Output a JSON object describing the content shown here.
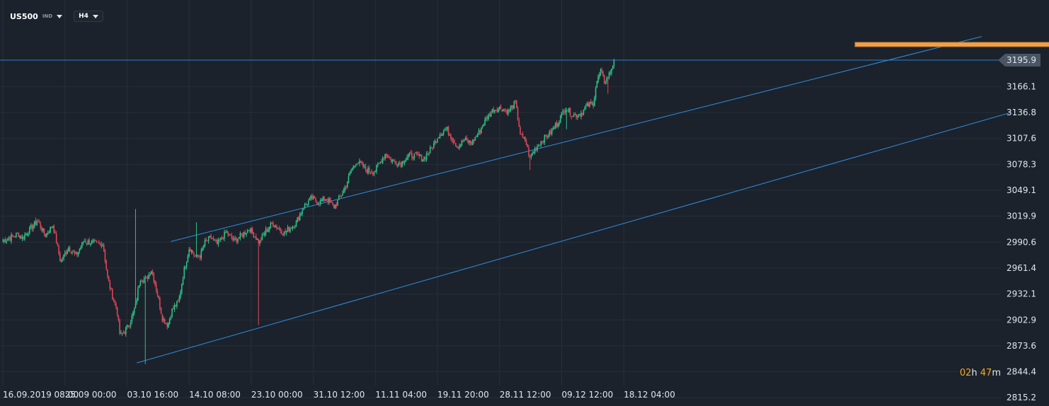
{
  "toolbar": {
    "symbol": "US500",
    "symbol_type": "IND",
    "timeframe": "H4",
    "symbol_dropdown_icon": "chevron-down-icon",
    "timeframe_dropdown_icon": "chevron-down-icon"
  },
  "timer": {
    "hours": "02",
    "h_unit": "h",
    "minutes": "47",
    "m_unit": "m"
  },
  "colors": {
    "background": "#1b222b",
    "grid": "#262f3a",
    "up_candle": "#2fbf85",
    "down_candle": "#e0455a",
    "channel_line": "#2f8fe6",
    "price_line": "#2f8fe6",
    "resistance_zone": "#f0a04b",
    "current_price_tag": "#4a5563",
    "axis_text": "#dfe6ee"
  },
  "chart_data": {
    "type": "candlestick",
    "symbol": "US500",
    "timeframe": "H4",
    "current_price": 3195.9,
    "y_axis_ticks": [
      "3195.9",
      "3166.1",
      "3136.8",
      "3107.6",
      "3078.3",
      "3049.1",
      "3019.9",
      "2990.6",
      "2961.4",
      "2932.1",
      "2902.9",
      "2873.6",
      "2844.4",
      "2815.2"
    ],
    "y_axis_tick_values": [
      3195.9,
      3166.1,
      3136.8,
      3107.6,
      3078.3,
      3049.1,
      3019.9,
      2990.6,
      2961.4,
      2932.1,
      2902.9,
      2873.6,
      2844.4,
      2815.2
    ],
    "ylim": [
      2809,
      3223
    ],
    "x_axis_labels": [
      "16.09.2019  08:00",
      "25.09  00:00",
      "03.10  16:00",
      "14.10  08:00",
      "23.10  00:00",
      "31.10  12:00",
      "11.11  04:00",
      "19.11  20:00",
      "28.11  12:00",
      "09.12  12:00",
      "18.12  04:00"
    ],
    "x_axis_label_index": [
      0,
      51,
      102,
      153,
      204,
      255,
      306,
      357,
      408,
      459,
      510
    ],
    "bar_count": 503,
    "close_path_anchors": [
      [
        0,
        2992
      ],
      [
        20,
        3000
      ],
      [
        25,
        2995
      ],
      [
        35,
        3005
      ],
      [
        45,
        3015
      ],
      [
        55,
        2998
      ],
      [
        65,
        3010
      ],
      [
        75,
        2968
      ],
      [
        85,
        2985
      ],
      [
        95,
        2975
      ],
      [
        105,
        2992
      ],
      [
        115,
        2990
      ],
      [
        130,
        2988
      ],
      [
        136,
        2950
      ],
      [
        142,
        2930
      ],
      [
        148,
        2915
      ],
      [
        152,
        2885
      ],
      [
        158,
        2890
      ],
      [
        165,
        2900
      ],
      [
        172,
        2918
      ],
      [
        178,
        2950
      ],
      [
        186,
        2948
      ],
      [
        193,
        2960
      ],
      [
        200,
        2935
      ],
      [
        207,
        2905
      ],
      [
        214,
        2897
      ],
      [
        220,
        2915
      ],
      [
        228,
        2923
      ],
      [
        235,
        2958
      ],
      [
        242,
        2985
      ],
      [
        250,
        2974
      ],
      [
        256,
        2975
      ],
      [
        262,
        2990
      ],
      [
        270,
        2996
      ],
      [
        278,
        2988
      ],
      [
        290,
        3002
      ],
      [
        300,
        2992
      ],
      [
        312,
        3000
      ],
      [
        320,
        3006
      ],
      [
        333,
        2990
      ],
      [
        340,
        3002
      ],
      [
        350,
        3012
      ],
      [
        365,
        3001
      ],
      [
        380,
        3012
      ],
      [
        390,
        3030
      ],
      [
        400,
        3040
      ],
      [
        410,
        3036
      ],
      [
        420,
        3040
      ],
      [
        430,
        3030
      ],
      [
        438,
        3042
      ],
      [
        446,
        3056
      ],
      [
        452,
        3072
      ],
      [
        460,
        3082
      ],
      [
        472,
        3072
      ],
      [
        482,
        3070
      ],
      [
        496,
        3090
      ],
      [
        506,
        3082
      ],
      [
        516,
        3079
      ],
      [
        526,
        3088
      ],
      [
        536,
        3088
      ],
      [
        546,
        3085
      ],
      [
        556,
        3096
      ],
      [
        566,
        3112
      ],
      [
        576,
        3118
      ],
      [
        583,
        3108
      ],
      [
        590,
        3098
      ],
      [
        598,
        3106
      ],
      [
        608,
        3102
      ],
      [
        618,
        3115
      ],
      [
        626,
        3128
      ],
      [
        636,
        3140
      ],
      [
        646,
        3142
      ],
      [
        656,
        3138
      ],
      [
        665,
        3148
      ],
      [
        672,
        3110
      ],
      [
        678,
        3105
      ],
      [
        684,
        3085
      ],
      [
        690,
        3095
      ],
      [
        700,
        3106
      ],
      [
        710,
        3113
      ],
      [
        720,
        3126
      ],
      [
        730,
        3143
      ],
      [
        740,
        3133
      ],
      [
        750,
        3136
      ],
      [
        760,
        3146
      ],
      [
        766,
        3146
      ],
      [
        770,
        3170
      ],
      [
        776,
        3184
      ],
      [
        780,
        3172
      ],
      [
        784,
        3175
      ],
      [
        788,
        3182
      ],
      [
        793,
        3195.9
      ]
    ],
    "low_spikes": [
      [
        185,
        2853
      ],
      [
        332,
        2897
      ],
      [
        684,
        3072
      ],
      [
        732,
        3118
      ],
      [
        785,
        3158
      ]
    ],
    "high_spikes": [
      [
        172,
        3028
      ],
      [
        251,
        3013
      ],
      [
        466,
        3055
      ],
      [
        488,
        3048
      ]
    ],
    "channel": {
      "upper": [
        [
          138,
          2991.3
        ],
        [
          804,
          3222.5
        ]
      ],
      "lower": [
        [
          110,
          2854.4
        ],
        [
          828,
          3136.8
        ]
      ]
    },
    "resistance_zone": {
      "price": 3213.5,
      "from_index": 700,
      "to_index": 1000
    }
  }
}
